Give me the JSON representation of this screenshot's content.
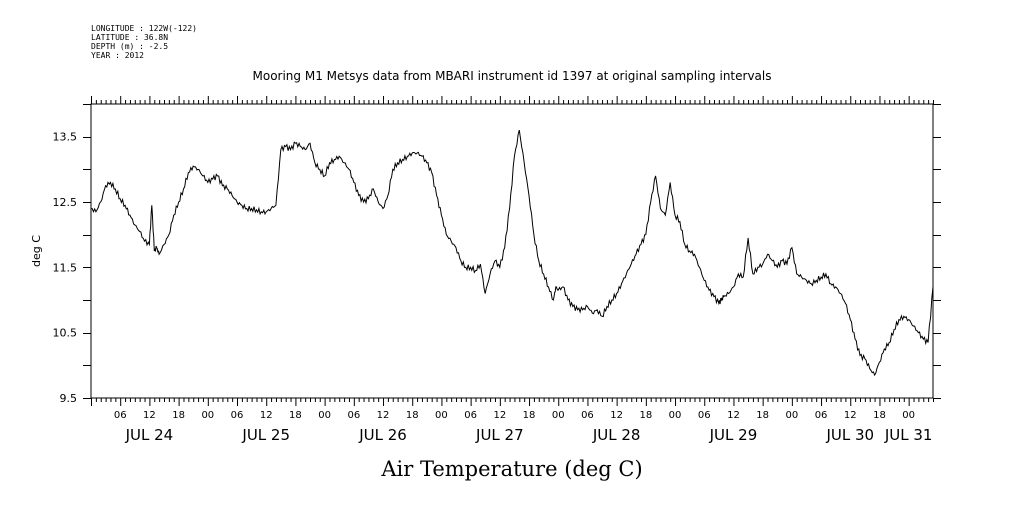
{
  "header": {
    "lines": [
      "LONGITUDE : 122W(-122)",
      "LATITUDE : 36.8N",
      "DEPTH (m) : -2.5",
      "YEAR : 2012"
    ]
  },
  "chart_data": {
    "type": "line",
    "title": "Mooring M1 Metsys data from MBARI instrument id 1397 at original sampling intervals",
    "xlabel": "Air Temperature (deg C)",
    "ylabel": "deg C",
    "xlim": [
      "JUL 24 00:00",
      "JUL 31 05:00"
    ],
    "ylim": [
      9.5,
      14.0
    ],
    "y_ticks": [
      9.5,
      10.5,
      11.5,
      12.5,
      13.5
    ],
    "y_tick_labels": [
      "9.5",
      "10.5",
      "11.5",
      "12.5",
      "13.5"
    ],
    "x_hour_ticks": [
      {
        "label": "06",
        "day": 24,
        "hour": 6
      },
      {
        "label": "12",
        "day": 24,
        "hour": 12
      },
      {
        "label": "18",
        "day": 24,
        "hour": 18
      },
      {
        "label": "00",
        "day": 25,
        "hour": 0
      },
      {
        "label": "06",
        "day": 25,
        "hour": 6
      },
      {
        "label": "12",
        "day": 25,
        "hour": 12
      },
      {
        "label": "18",
        "day": 25,
        "hour": 18
      },
      {
        "label": "00",
        "day": 26,
        "hour": 0
      },
      {
        "label": "06",
        "day": 26,
        "hour": 6
      },
      {
        "label": "12",
        "day": 26,
        "hour": 12
      },
      {
        "label": "18",
        "day": 26,
        "hour": 18
      },
      {
        "label": "00",
        "day": 27,
        "hour": 0
      },
      {
        "label": "06",
        "day": 27,
        "hour": 6
      },
      {
        "label": "12",
        "day": 27,
        "hour": 12
      },
      {
        "label": "18",
        "day": 27,
        "hour": 18
      },
      {
        "label": "00",
        "day": 28,
        "hour": 0
      },
      {
        "label": "06",
        "day": 28,
        "hour": 6
      },
      {
        "label": "12",
        "day": 28,
        "hour": 12
      },
      {
        "label": "18",
        "day": 28,
        "hour": 18
      },
      {
        "label": "00",
        "day": 29,
        "hour": 0
      },
      {
        "label": "06",
        "day": 29,
        "hour": 6
      },
      {
        "label": "12",
        "day": 29,
        "hour": 12
      },
      {
        "label": "18",
        "day": 29,
        "hour": 18
      },
      {
        "label": "00",
        "day": 30,
        "hour": 0
      },
      {
        "label": "06",
        "day": 30,
        "hour": 6
      },
      {
        "label": "12",
        "day": 30,
        "hour": 12
      },
      {
        "label": "18",
        "day": 30,
        "hour": 18
      },
      {
        "label": "00",
        "day": 31,
        "hour": 0
      }
    ],
    "x_day_labels": [
      {
        "label": "JUL 24",
        "day": 24,
        "hour": 12
      },
      {
        "label": "JUL 25",
        "day": 25,
        "hour": 12
      },
      {
        "label": "JUL 26",
        "day": 26,
        "hour": 12
      },
      {
        "label": "JUL 27",
        "day": 27,
        "hour": 12
      },
      {
        "label": "JUL 28",
        "day": 28,
        "hour": 12
      },
      {
        "label": "JUL 29",
        "day": 29,
        "hour": 12
      },
      {
        "label": "JUL 30",
        "day": 30,
        "hour": 12
      },
      {
        "label": "JUL 31",
        "day": 31,
        "hour": 0
      }
    ],
    "grid": false,
    "series": [
      {
        "x_hours_since_jul24": [
          0,
          1,
          2,
          3,
          4,
          5,
          6,
          7,
          8,
          9,
          10,
          11,
          12,
          12.5,
          13,
          13.5,
          14,
          15,
          16,
          17,
          18,
          19,
          20,
          21,
          22,
          23,
          24,
          25,
          26,
          27,
          28,
          29,
          30,
          31,
          32,
          33,
          34,
          35,
          36,
          37,
          38,
          39,
          40,
          41,
          42,
          43,
          44,
          45,
          46,
          47,
          48,
          49,
          50,
          51,
          52,
          53,
          54,
          55,
          56,
          57,
          58,
          59,
          60,
          61,
          62,
          63,
          64,
          65,
          66,
          67,
          68,
          69,
          70,
          71,
          72,
          73,
          74,
          75,
          76,
          77,
          78,
          79,
          80,
          81,
          82,
          83,
          84,
          85,
          86,
          87,
          88,
          89,
          90,
          91,
          92,
          93,
          94,
          95,
          95.5,
          96,
          97,
          98,
          99,
          100,
          101,
          102,
          103,
          104,
          105,
          106,
          107,
          108,
          109,
          110,
          111,
          112,
          113,
          114,
          115,
          116,
          117,
          118,
          119,
          120,
          121,
          122,
          123,
          124,
          125,
          126,
          127,
          128,
          129,
          129.5,
          130,
          131,
          132,
          133,
          134,
          135,
          136,
          137,
          138,
          139,
          140,
          141,
          142,
          143,
          144,
          145,
          146,
          147,
          148,
          149,
          150,
          151,
          152,
          153,
          154,
          155,
          156,
          157,
          158,
          159,
          160,
          161,
          162,
          163,
          164,
          165,
          166,
          167,
          168,
          169,
          170,
          171,
          172,
          173,
          174,
          175,
          176
        ],
        "y_degC": [
          12.4,
          12.35,
          12.5,
          12.75,
          12.8,
          12.7,
          12.55,
          12.45,
          12.3,
          12.15,
          12.05,
          11.9,
          11.85,
          12.45,
          11.75,
          11.8,
          11.7,
          11.85,
          12.0,
          12.3,
          12.5,
          12.7,
          12.95,
          13.05,
          13.0,
          12.9,
          12.8,
          12.85,
          12.9,
          12.75,
          12.7,
          12.6,
          12.5,
          12.45,
          12.4,
          12.4,
          12.38,
          12.35,
          12.35,
          12.4,
          12.45,
          13.3,
          13.35,
          13.3,
          13.4,
          13.35,
          13.3,
          13.4,
          13.1,
          13.0,
          12.9,
          13.1,
          13.15,
          13.2,
          13.1,
          13.0,
          12.8,
          12.6,
          12.5,
          12.55,
          12.7,
          12.5,
          12.4,
          12.6,
          13.0,
          13.1,
          13.15,
          13.2,
          13.25,
          13.25,
          13.2,
          13.1,
          12.95,
          12.6,
          12.3,
          12.0,
          11.9,
          11.8,
          11.6,
          11.5,
          11.5,
          11.45,
          11.55,
          11.1,
          11.4,
          11.6,
          11.5,
          11.8,
          12.4,
          13.2,
          13.6,
          13.1,
          12.6,
          12.0,
          11.6,
          11.4,
          11.2,
          11.0,
          11.2,
          11.15,
          11.2,
          11.0,
          10.9,
          10.85,
          10.85,
          10.9,
          10.8,
          10.85,
          10.75,
          10.9,
          11.0,
          11.1,
          11.25,
          11.4,
          11.55,
          11.7,
          11.85,
          12.0,
          12.5,
          12.9,
          12.4,
          12.3,
          12.8,
          12.3,
          12.2,
          11.85,
          11.75,
          11.7,
          11.5,
          11.3,
          11.15,
          11.05,
          10.95,
          11.0,
          11.05,
          11.1,
          11.2,
          11.4,
          11.35,
          11.95,
          11.4,
          11.5,
          11.55,
          11.7,
          11.6,
          11.5,
          11.6,
          11.55,
          11.8,
          11.4,
          11.35,
          11.3,
          11.25,
          11.3,
          11.35,
          11.4,
          11.25,
          11.2,
          11.1,
          10.95,
          10.7,
          10.4,
          10.15,
          10.1,
          9.95,
          9.85,
          10.05,
          10.25,
          10.35,
          10.55,
          10.7,
          10.75,
          10.7,
          10.6,
          10.5,
          10.4,
          10.35,
          11.2
        ]
      }
    ]
  }
}
